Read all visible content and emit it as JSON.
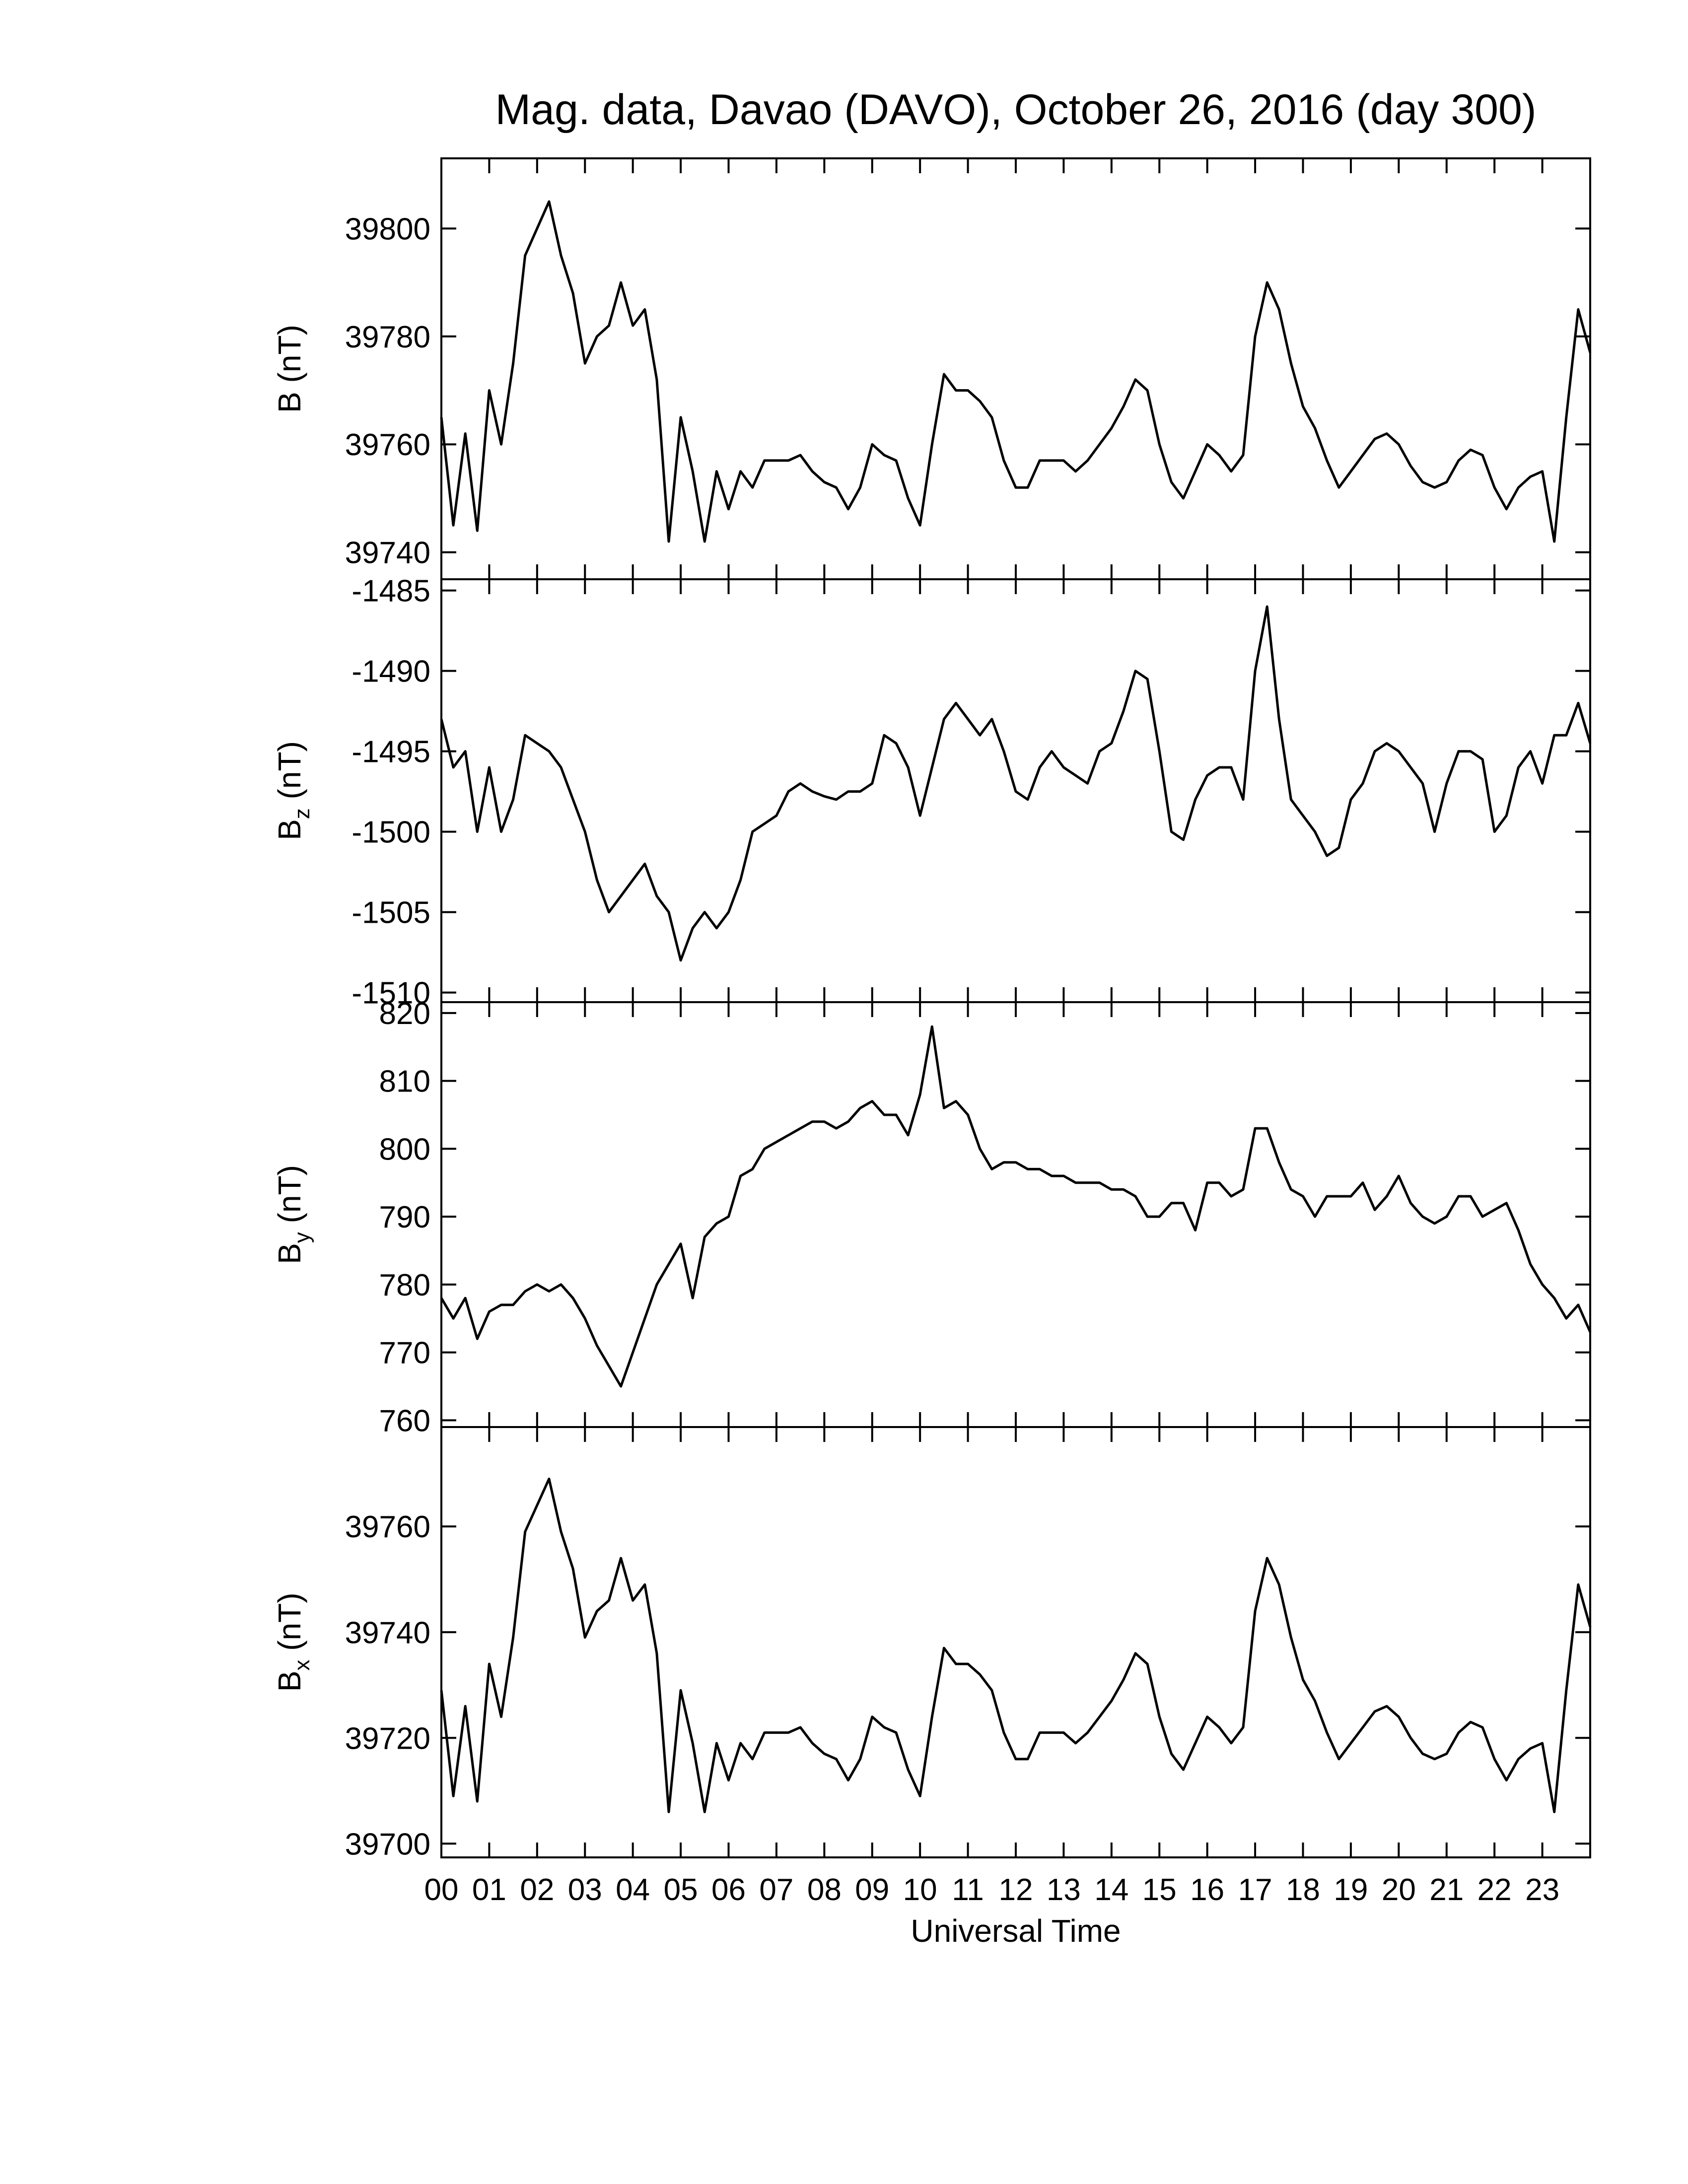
{
  "chart_data": [
    {
      "type": "line",
      "title": "Mag. data, Davao (DAVO), October 26, 2016 (day 300)",
      "ylabel": "B",
      "ylabel_unit": "(nT)",
      "color": "#000000",
      "xlim": [
        0,
        24
      ],
      "ylim": [
        39735,
        39813
      ],
      "yticks": [
        39740,
        39760,
        39780,
        39800
      ],
      "x": [
        0,
        0.25,
        0.5,
        0.75,
        1,
        1.25,
        1.5,
        1.75,
        2,
        2.25,
        2.5,
        2.75,
        3,
        3.25,
        3.5,
        3.75,
        4,
        4.25,
        4.5,
        4.75,
        5,
        5.25,
        5.5,
        5.75,
        6,
        6.25,
        6.5,
        6.75,
        7,
        7.25,
        7.5,
        7.75,
        8,
        8.25,
        8.5,
        8.75,
        9,
        9.25,
        9.5,
        9.75,
        10,
        10.25,
        10.5,
        10.75,
        11,
        11.25,
        11.5,
        11.75,
        12,
        12.25,
        12.5,
        12.75,
        13,
        13.25,
        13.5,
        13.75,
        14,
        14.25,
        14.5,
        14.75,
        15,
        15.25,
        15.5,
        15.75,
        16,
        16.25,
        16.5,
        16.75,
        17,
        17.25,
        17.5,
        17.75,
        18,
        18.25,
        18.5,
        18.75,
        19,
        19.25,
        19.5,
        19.75,
        20,
        20.25,
        20.5,
        20.75,
        21,
        21.25,
        21.5,
        21.75,
        22,
        22.25,
        22.5,
        22.75,
        23,
        23.25,
        23.5,
        23.75,
        24
      ],
      "values": [
        39765,
        39745,
        39762,
        39744,
        39770,
        39760,
        39775,
        39795,
        39800,
        39805,
        39795,
        39788,
        39775,
        39780,
        39782,
        39790,
        39782,
        39785,
        39772,
        39742,
        39765,
        39755,
        39742,
        39755,
        39748,
        39755,
        39752,
        39757,
        39757,
        39757,
        39758,
        39755,
        39753,
        39752,
        39748,
        39752,
        39760,
        39758,
        39757,
        39750,
        39745,
        39760,
        39773,
        39770,
        39770,
        39768,
        39765,
        39757,
        39752,
        39752,
        39757,
        39757,
        39757,
        39755,
        39757,
        39760,
        39763,
        39767,
        39772,
        39770,
        39760,
        39753,
        39750,
        39755,
        39760,
        39758,
        39755,
        39758,
        39780,
        39790,
        39785,
        39775,
        39767,
        39763,
        39757,
        39752,
        39755,
        39758,
        39761,
        39762,
        39760,
        39756,
        39753,
        39752,
        39753,
        39757,
        39759,
        39758,
        39752,
        39748,
        39752,
        39754,
        39755,
        39742,
        39765,
        39785,
        39777
      ]
    },
    {
      "type": "line",
      "ylabel": "B",
      "ylabel_sub": "z",
      "ylabel_unit": "(nT)",
      "color": "#000000",
      "xlim": [
        0,
        24
      ],
      "ylim": [
        -1510.6,
        -1484.3
      ],
      "yticks": [
        -1510,
        -1505,
        -1500,
        -1495,
        -1490,
        -1485
      ],
      "x": [
        0,
        0.25,
        0.5,
        0.75,
        1,
        1.25,
        1.5,
        1.75,
        2,
        2.25,
        2.5,
        2.75,
        3,
        3.25,
        3.5,
        3.75,
        4,
        4.25,
        4.5,
        4.75,
        5,
        5.25,
        5.5,
        5.75,
        6,
        6.25,
        6.5,
        6.75,
        7,
        7.25,
        7.5,
        7.75,
        8,
        8.25,
        8.5,
        8.75,
        9,
        9.25,
        9.5,
        9.75,
        10,
        10.25,
        10.5,
        10.75,
        11,
        11.25,
        11.5,
        11.75,
        12,
        12.25,
        12.5,
        12.75,
        13,
        13.25,
        13.5,
        13.75,
        14,
        14.25,
        14.5,
        14.75,
        15,
        15.25,
        15.5,
        15.75,
        16,
        16.25,
        16.5,
        16.75,
        17,
        17.25,
        17.5,
        17.75,
        18,
        18.25,
        18.5,
        18.75,
        19,
        19.25,
        19.5,
        19.75,
        20,
        20.25,
        20.5,
        20.75,
        21,
        21.25,
        21.5,
        21.75,
        22,
        22.25,
        22.5,
        22.75,
        23,
        23.25,
        23.5,
        23.75,
        24
      ],
      "values": [
        -1493,
        -1496,
        -1495,
        -1500,
        -1496,
        -1500,
        -1498,
        -1494,
        -1494.5,
        -1495,
        -1496,
        -1498,
        -1500,
        -1503,
        -1505,
        -1504,
        -1503,
        -1502,
        -1504,
        -1505,
        -1508,
        -1506,
        -1505,
        -1506,
        -1505,
        -1503,
        -1500,
        -1499.5,
        -1499,
        -1497.5,
        -1497,
        -1497.5,
        -1497.8,
        -1498,
        -1497.5,
        -1497.5,
        -1497,
        -1494,
        -1494.5,
        -1496,
        -1499,
        -1496,
        -1493,
        -1492,
        -1493,
        -1494,
        -1493,
        -1495,
        -1497.5,
        -1498,
        -1496,
        -1495,
        -1496,
        -1496.5,
        -1497,
        -1495,
        -1494.5,
        -1492.5,
        -1490,
        -1490.5,
        -1495,
        -1500,
        -1500.5,
        -1498,
        -1496.5,
        -1496,
        -1496,
        -1498,
        -1490,
        -1486,
        -1493,
        -1498,
        -1499,
        -1500,
        -1501.5,
        -1501,
        -1498,
        -1497,
        -1495,
        -1494.5,
        -1495,
        -1496,
        -1497,
        -1500,
        -1497,
        -1495,
        -1495,
        -1495.5,
        -1500,
        -1499,
        -1496,
        -1495,
        -1497,
        -1494,
        -1494,
        -1492,
        -1494.5
      ]
    },
    {
      "type": "line",
      "ylabel": "B",
      "ylabel_sub": "y",
      "ylabel_unit": "(nT)",
      "color": "#000000",
      "xlim": [
        0,
        24
      ],
      "ylim": [
        759,
        821.6
      ],
      "yticks": [
        760,
        770,
        780,
        790,
        800,
        810,
        820
      ],
      "x": [
        0,
        0.25,
        0.5,
        0.75,
        1,
        1.25,
        1.5,
        1.75,
        2,
        2.25,
        2.5,
        2.75,
        3,
        3.25,
        3.5,
        3.75,
        4,
        4.25,
        4.5,
        4.75,
        5,
        5.25,
        5.5,
        5.75,
        6,
        6.25,
        6.5,
        6.75,
        7,
        7.25,
        7.5,
        7.75,
        8,
        8.25,
        8.5,
        8.75,
        9,
        9.25,
        9.5,
        9.75,
        10,
        10.25,
        10.5,
        10.75,
        11,
        11.25,
        11.5,
        11.75,
        12,
        12.25,
        12.5,
        12.75,
        13,
        13.25,
        13.5,
        13.75,
        14,
        14.25,
        14.5,
        14.75,
        15,
        15.25,
        15.5,
        15.75,
        16,
        16.25,
        16.5,
        16.75,
        17,
        17.25,
        17.5,
        17.75,
        18,
        18.25,
        18.5,
        18.75,
        19,
        19.25,
        19.5,
        19.75,
        20,
        20.25,
        20.5,
        20.75,
        21,
        21.25,
        21.5,
        21.75,
        22,
        22.25,
        22.5,
        22.75,
        23,
        23.25,
        23.5,
        23.75,
        24
      ],
      "values": [
        778,
        775,
        778,
        772,
        776,
        777,
        777,
        779,
        780,
        779,
        780,
        778,
        775,
        771,
        768,
        765,
        770,
        775,
        780,
        783,
        786,
        778,
        787,
        789,
        790,
        796,
        797,
        800,
        801,
        802,
        803,
        804,
        804,
        803,
        804,
        806,
        807,
        805,
        805,
        802,
        808,
        818,
        806,
        807,
        805,
        800,
        797,
        798,
        798,
        797,
        797,
        796,
        796,
        795,
        795,
        795,
        794,
        794,
        793,
        790,
        790,
        792,
        792,
        788,
        795,
        795,
        793,
        794,
        803,
        803,
        798,
        794,
        793,
        790,
        793,
        793,
        793,
        795,
        791,
        793,
        796,
        792,
        790,
        789,
        790,
        793,
        793,
        790,
        791,
        792,
        788,
        783,
        780,
        778,
        775,
        777,
        773
      ]
    },
    {
      "type": "line",
      "ylabel": "B",
      "ylabel_sub": "x",
      "ylabel_unit": "(nT)",
      "color": "#000000",
      "xlabel": "Universal Time",
      "xlim": [
        0,
        24
      ],
      "ylim": [
        39697.4,
        39778.8
      ],
      "yticks": [
        39700,
        39720,
        39740,
        39760
      ],
      "xticks": [
        {
          "value": 0,
          "label": "00"
        },
        {
          "value": 1,
          "label": "01"
        },
        {
          "value": 2,
          "label": "02"
        },
        {
          "value": 3,
          "label": "03"
        },
        {
          "value": 4,
          "label": "04"
        },
        {
          "value": 5,
          "label": "05"
        },
        {
          "value": 6,
          "label": "06"
        },
        {
          "value": 7,
          "label": "07"
        },
        {
          "value": 8,
          "label": "08"
        },
        {
          "value": 9,
          "label": "09"
        },
        10,
        11,
        12,
        13,
        14,
        15,
        16,
        17,
        18,
        19,
        20,
        21,
        22,
        23
      ],
      "x": [
        0,
        0.25,
        0.5,
        0.75,
        1,
        1.25,
        1.5,
        1.75,
        2,
        2.25,
        2.5,
        2.75,
        3,
        3.25,
        3.5,
        3.75,
        4,
        4.25,
        4.5,
        4.75,
        5,
        5.25,
        5.5,
        5.75,
        6,
        6.25,
        6.5,
        6.75,
        7,
        7.25,
        7.5,
        7.75,
        8,
        8.25,
        8.5,
        8.75,
        9,
        9.25,
        9.5,
        9.75,
        10,
        10.25,
        10.5,
        10.75,
        11,
        11.25,
        11.5,
        11.75,
        12,
        12.25,
        12.5,
        12.75,
        13,
        13.25,
        13.5,
        13.75,
        14,
        14.25,
        14.5,
        14.75,
        15,
        15.25,
        15.5,
        15.75,
        16,
        16.25,
        16.5,
        16.75,
        17,
        17.25,
        17.5,
        17.75,
        18,
        18.25,
        18.5,
        18.75,
        19,
        19.25,
        19.5,
        19.75,
        20,
        20.25,
        20.5,
        20.75,
        21,
        21.25,
        21.5,
        21.75,
        22,
        22.25,
        22.5,
        22.75,
        23,
        23.25,
        23.5,
        23.75,
        24
      ],
      "values": [
        39729,
        39709,
        39726,
        39708,
        39734,
        39724,
        39739,
        39759,
        39764,
        39769,
        39759,
        39752,
        39739,
        39744,
        39746,
        39754,
        39746,
        39749,
        39736,
        39706,
        39729,
        39719,
        39706,
        39719,
        39712,
        39719,
        39716,
        39721,
        39721,
        39721,
        39722,
        39719,
        39717,
        39716,
        39712,
        39716,
        39724,
        39722,
        39721,
        39714,
        39709,
        39724,
        39737,
        39734,
        39734,
        39732,
        39729,
        39721,
        39716,
        39716,
        39721,
        39721,
        39721,
        39719,
        39721,
        39724,
        39727,
        39731,
        39736,
        39734,
        39724,
        39717,
        39714,
        39719,
        39724,
        39722,
        39719,
        39722,
        39744,
        39754,
        39749,
        39739,
        39731,
        39727,
        39721,
        39716,
        39719,
        39722,
        39725,
        39726,
        39724,
        39720,
        39717,
        39716,
        39717,
        39721,
        39723,
        39722,
        39716,
        39712,
        39716,
        39718,
        39719,
        39706,
        39729,
        39749,
        39741
      ]
    }
  ]
}
